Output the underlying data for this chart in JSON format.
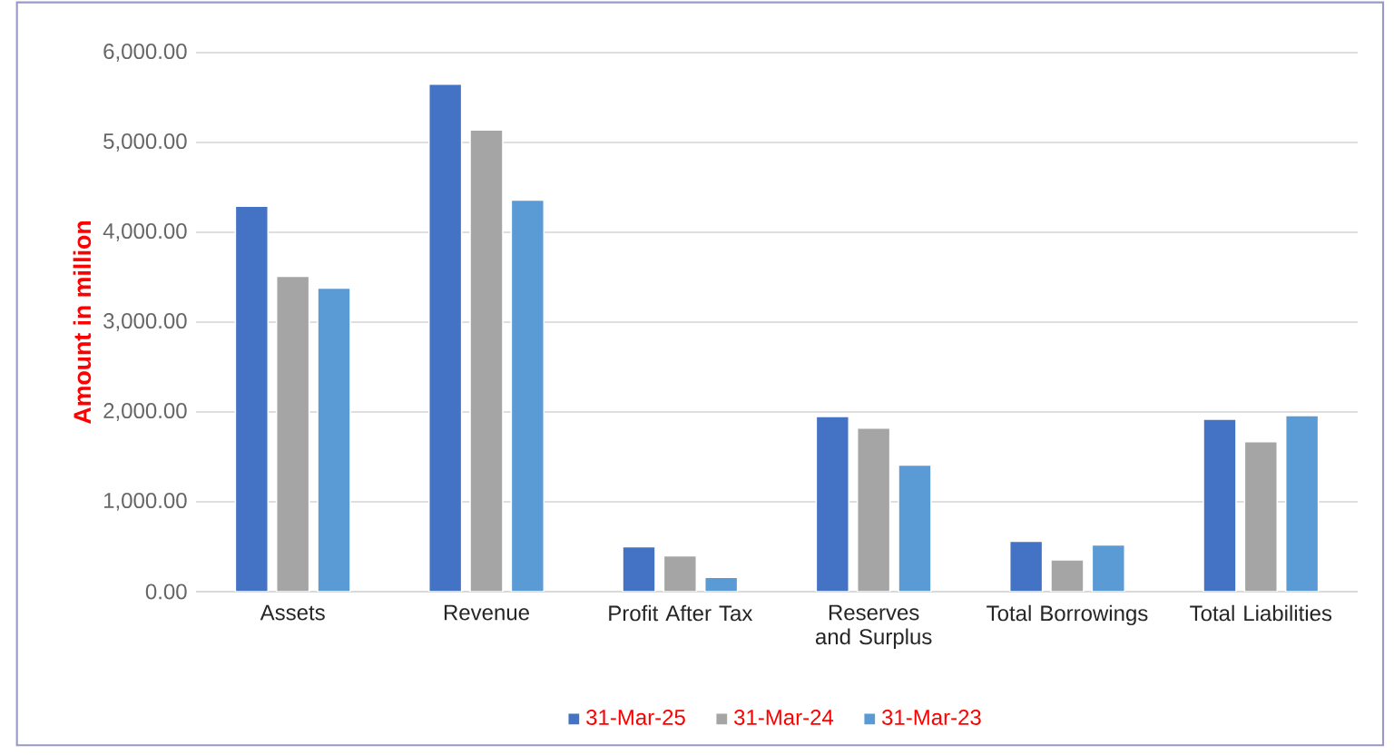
{
  "chart_data": {
    "type": "bar",
    "ylabel": "Amount in million",
    "categories": [
      "Assets",
      "Revenue",
      "Profit After Tax",
      "Reserves and Surplus",
      "Total Borrowings",
      "Total Liabilities"
    ],
    "series": [
      {
        "name": "31-Mar-25",
        "color": "#4472c4",
        "values": [
          4290,
          5650,
          500,
          1950,
          560,
          1920
        ]
      },
      {
        "name": "31-Mar-24",
        "color": "#a5a5a5",
        "values": [
          3510,
          5140,
          400,
          1820,
          355,
          1670
        ]
      },
      {
        "name": "31-Mar-23",
        "color": "#5b9bd5",
        "values": [
          3380,
          4360,
          160,
          1410,
          520,
          1960
        ]
      }
    ],
    "ylim": [
      0,
      6000
    ],
    "yticks": [
      {
        "value": 0,
        "label": "0.00"
      },
      {
        "value": 1000,
        "label": "1,000.00"
      },
      {
        "value": 2000,
        "label": "2,000.00"
      },
      {
        "value": 3000,
        "label": "3,000.00"
      },
      {
        "value": 4000,
        "label": "4,000.00"
      },
      {
        "value": 5000,
        "label": "5,000.00"
      },
      {
        "value": 6000,
        "label": "6,000.00"
      }
    ],
    "grid": "y",
    "legend": "bottom"
  }
}
